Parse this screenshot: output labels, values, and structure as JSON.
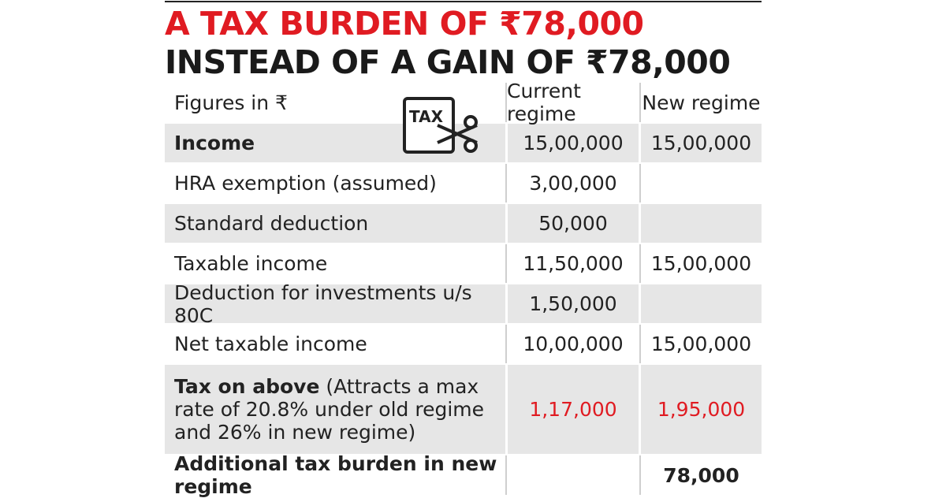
{
  "headline": {
    "part1": "A TAX BURDEN OF ₹78,000",
    "part2": " INSTEAD OF A GAIN OF ₹78,000"
  },
  "table": {
    "figures_note": "Figures in ₹",
    "icon_text": "TAX",
    "columns": [
      "Current regime",
      "New regime"
    ],
    "rows": [
      {
        "label": "Income",
        "current": "15,00,000",
        "new": "15,00,000"
      },
      {
        "label": "HRA exemption (assumed)",
        "current": "3,00,000",
        "new": ""
      },
      {
        "label": "Standard deduction",
        "current": "50,000",
        "new": ""
      },
      {
        "label": "Taxable income",
        "current": "11,50,000",
        "new": "15,00,000"
      },
      {
        "label": "Deduction for investments u/s 80C",
        "current": "1,50,000",
        "new": ""
      },
      {
        "label": "Net taxable income",
        "current": "10,00,000",
        "new": "15,00,000"
      },
      {
        "label_bold": "Tax on above",
        "label_rest": " (Attracts a max rate of 20.8% under old regime and 26% in new regime)",
        "current": "1,17,000",
        "new": "1,95,000"
      },
      {
        "label": "Additional tax burden in new regime",
        "current": "",
        "new": "78,000"
      }
    ]
  },
  "colors": {
    "accent_red": "#e01b22",
    "dark_header": "#222222",
    "row_shade": "#e6e6e6"
  }
}
